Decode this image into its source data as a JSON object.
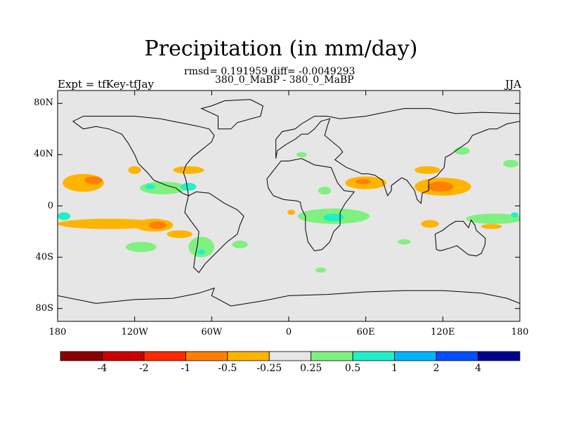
{
  "title": "Precipitation (in mm/day)",
  "stats": "rmsd= 0.191959 diff= -0.0049293",
  "subtitle": "380_0_MaBP - 380_0_MaBP",
  "left_label": "Expt = tfKey-tfJay",
  "right_label": "JJA",
  "map": {
    "lon_ticks": [
      {
        "lon": -180,
        "label": "180"
      },
      {
        "lon": -120,
        "label": "120W"
      },
      {
        "lon": -60,
        "label": "60W"
      },
      {
        "lon": 0,
        "label": "0"
      },
      {
        "lon": 60,
        "label": "60E"
      },
      {
        "lon": 120,
        "label": "120E"
      },
      {
        "lon": 180,
        "label": "180"
      }
    ],
    "lat_ticks": [
      {
        "lat": 80,
        "label": "80N"
      },
      {
        "lat": 40,
        "label": "40N"
      },
      {
        "lat": 0,
        "label": "0"
      },
      {
        "lat": -40,
        "label": "40S"
      },
      {
        "lat": -80,
        "label": "80S"
      }
    ],
    "lon_range": [
      -180,
      180
    ],
    "lat_range": [
      -90,
      90
    ],
    "background_color": "#e6e6e6"
  },
  "colorbar": {
    "colors": [
      "#8b0000",
      "#cc0000",
      "#ff2a00",
      "#ff7f00",
      "#ffb400",
      "#e6e6e6",
      "#80f080",
      "#20f0c8",
      "#00b4ff",
      "#0050ff",
      "#00008b"
    ],
    "labels": [
      "-4",
      "-2",
      "-1",
      "-0.5",
      "-0.25",
      "0.25",
      "0.5",
      "1",
      "2",
      "4"
    ]
  },
  "anomaly_regions": [
    {
      "lon": -160,
      "lat": 18,
      "rx": 16,
      "ry": 7,
      "level": "-0.5"
    },
    {
      "lon": -152,
      "lat": 20,
      "rx": 7,
      "ry": 3,
      "level": "-1"
    },
    {
      "lon": -98,
      "lat": 14,
      "rx": 18,
      "ry": 5,
      "level": "0.5"
    },
    {
      "lon": -108,
      "lat": 15,
      "rx": 4,
      "ry": 2,
      "level": "1"
    },
    {
      "lon": -78,
      "lat": 15,
      "rx": 6,
      "ry": 3,
      "level": "1"
    },
    {
      "lon": -120,
      "lat": 28,
      "rx": 5,
      "ry": 3,
      "level": "-0.5"
    },
    {
      "lon": -78,
      "lat": 28,
      "rx": 12,
      "ry": 3,
      "level": "-0.5"
    },
    {
      "lon": -140,
      "lat": -14,
      "rx": 40,
      "ry": 4,
      "level": "-0.5"
    },
    {
      "lon": -105,
      "lat": -15,
      "rx": 15,
      "ry": 5,
      "level": "-0.5"
    },
    {
      "lon": -102,
      "lat": -15,
      "rx": 7,
      "ry": 3,
      "level": "-1"
    },
    {
      "lon": -85,
      "lat": -22,
      "rx": 10,
      "ry": 3,
      "level": "-0.5"
    },
    {
      "lon": -175,
      "lat": -8,
      "rx": 5,
      "ry": 3,
      "level": "1"
    },
    {
      "lon": -115,
      "lat": -32,
      "rx": 12,
      "ry": 4,
      "level": "0.5"
    },
    {
      "lon": -68,
      "lat": -32,
      "rx": 10,
      "ry": 8,
      "level": "0.5"
    },
    {
      "lon": -68,
      "lat": -36,
      "rx": 3,
      "ry": 2,
      "level": "1"
    },
    {
      "lon": -38,
      "lat": -30,
      "rx": 6,
      "ry": 3,
      "level": "0.5"
    },
    {
      "lon": 10,
      "lat": 40,
      "rx": 4,
      "ry": 2,
      "level": "0.5"
    },
    {
      "lon": 60,
      "lat": 18,
      "rx": 16,
      "ry": 5,
      "level": "-0.5"
    },
    {
      "lon": 58,
      "lat": 19,
      "rx": 6,
      "ry": 2,
      "level": "-1"
    },
    {
      "lon": 28,
      "lat": 12,
      "rx": 5,
      "ry": 3,
      "level": "0.5"
    },
    {
      "lon": 35,
      "lat": -8,
      "rx": 28,
      "ry": 6,
      "level": "0.5"
    },
    {
      "lon": 35,
      "lat": -9,
      "rx": 8,
      "ry": 3,
      "level": "1"
    },
    {
      "lon": 2,
      "lat": -5,
      "rx": 3,
      "ry": 2,
      "level": "-0.5"
    },
    {
      "lon": 120,
      "lat": 15,
      "rx": 22,
      "ry": 7,
      "level": "-0.5"
    },
    {
      "lon": 118,
      "lat": 15,
      "rx": 10,
      "ry": 4,
      "level": "-1"
    },
    {
      "lon": 108,
      "lat": 28,
      "rx": 10,
      "ry": 3,
      "level": "-0.5"
    },
    {
      "lon": 135,
      "lat": 43,
      "rx": 6,
      "ry": 3,
      "level": "0.5"
    },
    {
      "lon": 173,
      "lat": 33,
      "rx": 6,
      "ry": 3,
      "level": "0.5"
    },
    {
      "lon": 160,
      "lat": -10,
      "rx": 22,
      "ry": 4,
      "level": "0.5"
    },
    {
      "lon": 176,
      "lat": -7,
      "rx": 3,
      "ry": 2,
      "level": "1"
    },
    {
      "lon": 110,
      "lat": -14,
      "rx": 7,
      "ry": 3,
      "level": "-0.5"
    },
    {
      "lon": 158,
      "lat": -16,
      "rx": 8,
      "ry": 2,
      "level": "-0.5"
    },
    {
      "lon": 90,
      "lat": -28,
      "rx": 5,
      "ry": 2,
      "level": "0.5"
    },
    {
      "lon": 25,
      "lat": -50,
      "rx": 4,
      "ry": 2,
      "level": "0.5"
    }
  ],
  "coastlines": [
    {
      "name": "north-america",
      "points": [
        [
          -160,
          60
        ],
        [
          -150,
          62
        ],
        [
          -140,
          60
        ],
        [
          -130,
          56
        ],
        [
          -125,
          49
        ],
        [
          -120,
          40
        ],
        [
          -117,
          33
        ],
        [
          -110,
          26
        ],
        [
          -105,
          20
        ],
        [
          -95,
          16
        ],
        [
          -88,
          14
        ],
        [
          -83,
          10
        ],
        [
          -78,
          8
        ],
        [
          -80,
          20
        ],
        [
          -82,
          26
        ],
        [
          -80,
          32
        ],
        [
          -75,
          38
        ],
        [
          -70,
          42
        ],
        [
          -65,
          46
        ],
        [
          -60,
          50
        ],
        [
          -58,
          55
        ],
        [
          -62,
          60
        ],
        [
          -70,
          62
        ],
        [
          -80,
          64
        ],
        [
          -90,
          66
        ],
        [
          -100,
          68
        ],
        [
          -120,
          70
        ],
        [
          -140,
          70
        ],
        [
          -160,
          70
        ],
        [
          -168,
          66
        ],
        [
          -160,
          60
        ]
      ]
    },
    {
      "name": "south-america",
      "points": [
        [
          -78,
          8
        ],
        [
          -72,
          11
        ],
        [
          -62,
          10
        ],
        [
          -50,
          2
        ],
        [
          -40,
          -3
        ],
        [
          -35,
          -8
        ],
        [
          -38,
          -15
        ],
        [
          -40,
          -22
        ],
        [
          -48,
          -28
        ],
        [
          -55,
          -35
        ],
        [
          -60,
          -40
        ],
        [
          -65,
          -45
        ],
        [
          -70,
          -52
        ],
        [
          -74,
          -48
        ],
        [
          -73,
          -40
        ],
        [
          -71,
          -30
        ],
        [
          -70,
          -20
        ],
        [
          -76,
          -12
        ],
        [
          -81,
          -5
        ],
        [
          -80,
          0
        ],
        [
          -78,
          8
        ]
      ]
    },
    {
      "name": "africa",
      "points": [
        [
          -17,
          21
        ],
        [
          -16,
          14
        ],
        [
          -12,
          8
        ],
        [
          -4,
          5
        ],
        [
          6,
          4
        ],
        [
          9,
          3
        ],
        [
          10,
          -2
        ],
        [
          13,
          -8
        ],
        [
          13,
          -18
        ],
        [
          15,
          -28
        ],
        [
          20,
          -35
        ],
        [
          26,
          -34
        ],
        [
          32,
          -28
        ],
        [
          35,
          -20
        ],
        [
          40,
          -15
        ],
        [
          40,
          -5
        ],
        [
          44,
          2
        ],
        [
          51,
          11
        ],
        [
          43,
          12
        ],
        [
          38,
          18
        ],
        [
          33,
          30
        ],
        [
          20,
          32
        ],
        [
          10,
          37
        ],
        [
          0,
          35
        ],
        [
          -6,
          35
        ],
        [
          -10,
          30
        ],
        [
          -17,
          21
        ]
      ]
    },
    {
      "name": "eurasia",
      "points": [
        [
          -10,
          37
        ],
        [
          -9,
          43
        ],
        [
          -2,
          48
        ],
        [
          5,
          52
        ],
        [
          10,
          56
        ],
        [
          15,
          56
        ],
        [
          20,
          60
        ],
        [
          25,
          66
        ],
        [
          32,
          68
        ],
        [
          30,
          62
        ],
        [
          28,
          55
        ],
        [
          40,
          45
        ],
        [
          42,
          42
        ],
        [
          36,
          36
        ],
        [
          45,
          30
        ],
        [
          50,
          28
        ],
        [
          57,
          25
        ],
        [
          62,
          25
        ],
        [
          67,
          24
        ],
        [
          73,
          20
        ],
        [
          77,
          8
        ],
        [
          80,
          12
        ],
        [
          80,
          16
        ],
        [
          88,
          22
        ],
        [
          92,
          20
        ],
        [
          98,
          12
        ],
        [
          100,
          5
        ],
        [
          103,
          2
        ],
        [
          104,
          10
        ],
        [
          109,
          12
        ],
        [
          109,
          20
        ],
        [
          115,
          23
        ],
        [
          121,
          30
        ],
        [
          122,
          38
        ],
        [
          126,
          40
        ],
        [
          130,
          43
        ],
        [
          140,
          50
        ],
        [
          143,
          55
        ],
        [
          156,
          60
        ],
        [
          162,
          60
        ],
        [
          170,
          64
        ],
        [
          180,
          66
        ],
        [
          180,
          72
        ],
        [
          150,
          73
        ],
        [
          130,
          72
        ],
        [
          110,
          76
        ],
        [
          90,
          76
        ],
        [
          70,
          72
        ],
        [
          60,
          70
        ],
        [
          40,
          68
        ],
        [
          30,
          70
        ],
        [
          20,
          70
        ],
        [
          10,
          64
        ],
        [
          5,
          60
        ],
        [
          -5,
          58
        ],
        [
          -10,
          52
        ],
        [
          -10,
          37
        ]
      ]
    },
    {
      "name": "australia",
      "points": [
        [
          114,
          -22
        ],
        [
          115,
          -34
        ],
        [
          118,
          -35
        ],
        [
          125,
          -33
        ],
        [
          131,
          -31
        ],
        [
          136,
          -35
        ],
        [
          140,
          -38
        ],
        [
          146,
          -39
        ],
        [
          150,
          -37
        ],
        [
          153,
          -30
        ],
        [
          153,
          -25
        ],
        [
          146,
          -19
        ],
        [
          145,
          -15
        ],
        [
          142,
          -11
        ],
        [
          140,
          -17
        ],
        [
          136,
          -12
        ],
        [
          130,
          -12
        ],
        [
          125,
          -15
        ],
        [
          120,
          -19
        ],
        [
          114,
          -22
        ]
      ]
    },
    {
      "name": "antarctica",
      "points": [
        [
          -180,
          -70
        ],
        [
          -150,
          -76
        ],
        [
          -120,
          -73
        ],
        [
          -90,
          -72
        ],
        [
          -70,
          -68
        ],
        [
          -58,
          -64
        ],
        [
          -60,
          -70
        ],
        [
          -45,
          -78
        ],
        [
          -20,
          -74
        ],
        [
          0,
          -70
        ],
        [
          30,
          -69
        ],
        [
          60,
          -67
        ],
        [
          90,
          -66
        ],
        [
          120,
          -66
        ],
        [
          150,
          -68
        ],
        [
          170,
          -72
        ],
        [
          180,
          -76
        ]
      ]
    },
    {
      "name": "greenland",
      "points": [
        [
          -55,
          60
        ],
        [
          -45,
          60
        ],
        [
          -40,
          65
        ],
        [
          -22,
          70
        ],
        [
          -20,
          78
        ],
        [
          -30,
          83
        ],
        [
          -50,
          82
        ],
        [
          -60,
          78
        ],
        [
          -68,
          76
        ],
        [
          -55,
          70
        ],
        [
          -55,
          60
        ]
      ]
    }
  ]
}
